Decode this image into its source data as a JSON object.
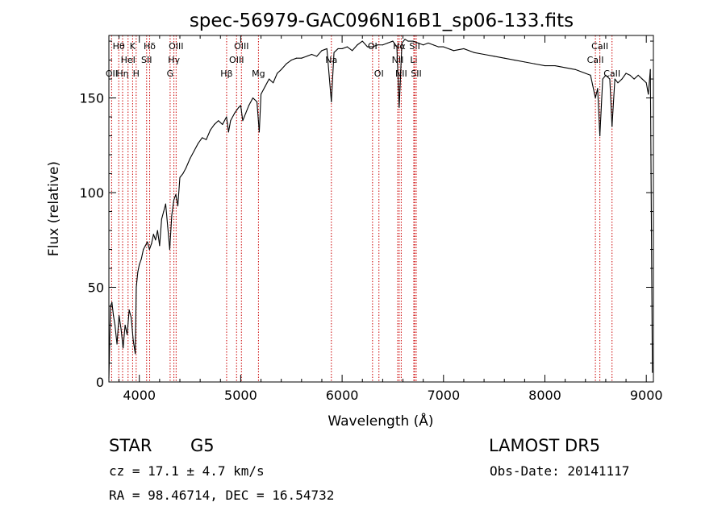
{
  "chart_data": {
    "type": "line",
    "title": "spec-56979-GAC096N16B1_sp06-133.fits",
    "xlabel": "Wavelength (Å)",
    "ylabel": "Flux (relative)",
    "xlim": [
      3700,
      9070
    ],
    "ylim": [
      0,
      183
    ],
    "x_ticks": [
      4000,
      5000,
      6000,
      7000,
      8000,
      9000
    ],
    "y_ticks": [
      0,
      50,
      100,
      150
    ],
    "grid": false,
    "line_color": "#000000",
    "marker_line_color": "#cc0000",
    "series": [
      {
        "x": [
          3700,
          3715,
          3730,
          3745,
          3760,
          3780,
          3800,
          3820,
          3840,
          3860,
          3880,
          3900,
          3920,
          3940,
          3960,
          3970,
          3985,
          4000,
          4020,
          4040,
          4060,
          4080,
          4100,
          4120,
          4140,
          4160,
          4180,
          4200,
          4220,
          4240,
          4260,
          4280,
          4300,
          4320,
          4340,
          4360,
          4380,
          4400,
          4430,
          4460,
          4500,
          4540,
          4580,
          4620,
          4660,
          4700,
          4740,
          4780,
          4820,
          4860,
          4880,
          4900,
          4940,
          4980,
          5000,
          5020,
          5050,
          5080,
          5120,
          5160,
          5183,
          5200,
          5240,
          5280,
          5320,
          5360,
          5400,
          5450,
          5500,
          5550,
          5600,
          5650,
          5700,
          5750,
          5800,
          5850,
          5894,
          5920,
          5960,
          6000,
          6050,
          6100,
          6150,
          6200,
          6250,
          6300,
          6350,
          6400,
          6450,
          6500,
          6540,
          6563,
          6590,
          6620,
          6650,
          6700,
          6750,
          6800,
          6850,
          6900,
          6950,
          7000,
          7100,
          7200,
          7300,
          7400,
          7500,
          7600,
          7700,
          7800,
          7900,
          8000,
          8100,
          8200,
          8300,
          8400,
          8450,
          8498,
          8520,
          8542,
          8570,
          8600,
          8640,
          8662,
          8690,
          8720,
          8760,
          8800,
          8840,
          8880,
          8920,
          8960,
          9000,
          9020,
          9040,
          9060
        ],
        "values": [
          2,
          40,
          42,
          35,
          30,
          20,
          35,
          28,
          18,
          30,
          25,
          38,
          34,
          22,
          15,
          50,
          58,
          62,
          65,
          70,
          72,
          74,
          70,
          73,
          78,
          75,
          80,
          72,
          86,
          90,
          94,
          82,
          70,
          88,
          96,
          99,
          93,
          108,
          110,
          113,
          118,
          122,
          126,
          129,
          128,
          133,
          136,
          138,
          136,
          140,
          132,
          138,
          142,
          145,
          146,
          138,
          142,
          146,
          150,
          148,
          132,
          152,
          156,
          160,
          158,
          163,
          165,
          168,
          170,
          171,
          171,
          172,
          173,
          172,
          175,
          176,
          148,
          174,
          176,
          176,
          177,
          175,
          178,
          180,
          177,
          177,
          178,
          178,
          179,
          180,
          177,
          145,
          179,
          181,
          180,
          180,
          179,
          178,
          179,
          178,
          177,
          177,
          175,
          176,
          174,
          173,
          172,
          171,
          170,
          169,
          168,
          167,
          167,
          166,
          165,
          163,
          162,
          150,
          155,
          130,
          160,
          162,
          160,
          135,
          160,
          158,
          160,
          163,
          162,
          160,
          162,
          160,
          158,
          152,
          165,
          5
        ]
      }
    ],
    "line_markers": [
      {
        "wavelength": 3727,
        "label": "OII",
        "row": 3
      },
      {
        "wavelength": 3797,
        "label": "Hθ",
        "row": 1
      },
      {
        "wavelength": 3835,
        "label": "Hη",
        "row": 3
      },
      {
        "wavelength": 3889,
        "label": "HeI",
        "row": 2
      },
      {
        "wavelength": 3934,
        "label": "K",
        "row": 1
      },
      {
        "wavelength": 3969,
        "label": "H",
        "row": 3
      },
      {
        "wavelength": 4072,
        "label": "SII",
        "row": 2
      },
      {
        "wavelength": 4102,
        "label": "Hδ",
        "row": 1
      },
      {
        "wavelength": 4304,
        "label": "G",
        "row": 3
      },
      {
        "wavelength": 4341,
        "label": "Hγ",
        "row": 2
      },
      {
        "wavelength": 4363,
        "label": "OIII",
        "row": 1
      },
      {
        "wavelength": 4861,
        "label": "Hβ",
        "row": 3
      },
      {
        "wavelength": 4959,
        "label": "OIII",
        "row": 2
      },
      {
        "wavelength": 5007,
        "label": "OIII",
        "row": 1
      },
      {
        "wavelength": 5175,
        "label": "Mg",
        "row": 3
      },
      {
        "wavelength": 5894,
        "label": "Na",
        "row": 2
      },
      {
        "wavelength": 6300,
        "label": "OI",
        "row": 1
      },
      {
        "wavelength": 6363,
        "label": "OI",
        "row": 3
      },
      {
        "wavelength": 6548,
        "label": "NII",
        "row": 2
      },
      {
        "wavelength": 6563,
        "label": "Hα",
        "row": 1
      },
      {
        "wavelength": 6583,
        "label": "NII",
        "row": 3
      },
      {
        "wavelength": 6707,
        "label": "Li",
        "row": 2
      },
      {
        "wavelength": 6716,
        "label": "SII",
        "row": 1
      },
      {
        "wavelength": 6731,
        "label": "SII",
        "row": 3
      },
      {
        "wavelength": 8498,
        "label": "CaII",
        "row": 2
      },
      {
        "wavelength": 8542,
        "label": "CaII",
        "row": 1
      },
      {
        "wavelength": 8662,
        "label": "CaII",
        "row": 3
      }
    ]
  },
  "info": {
    "object_class": "STAR",
    "subclass": "G5",
    "survey": "LAMOST  DR5",
    "redshift_text": "cz = 17.1 ± 4.7 km/s",
    "obs_date_text": "Obs-Date: 20141117",
    "coords_text": "RA =  98.46714, DEC =  16.54732"
  }
}
